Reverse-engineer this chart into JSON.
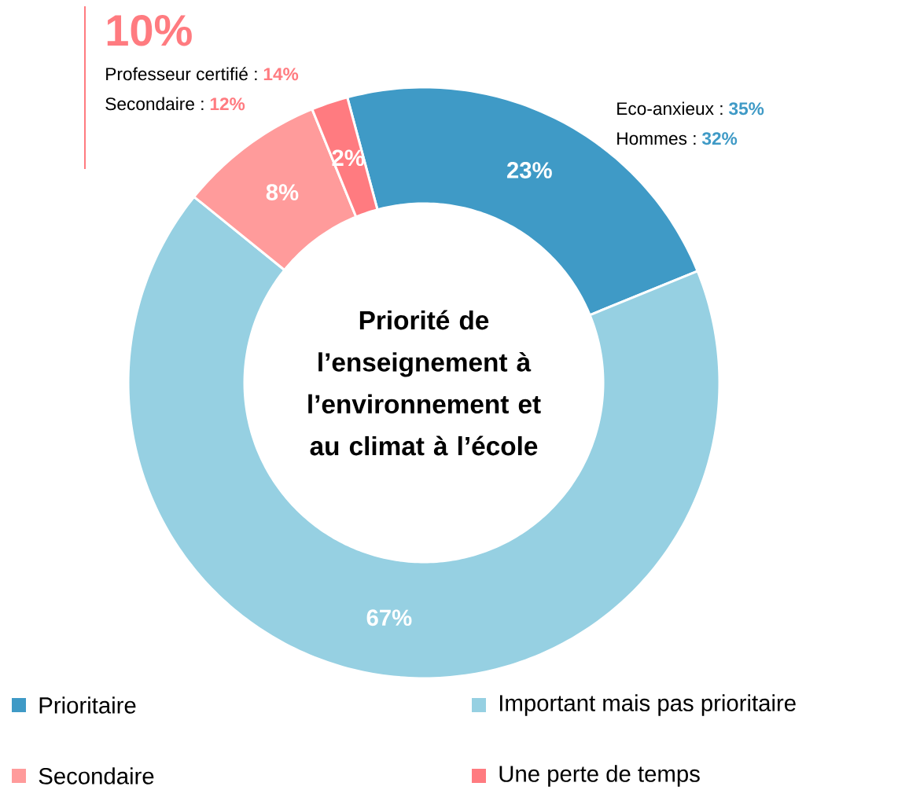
{
  "chart_data": {
    "type": "donut",
    "title": "Priorité de l’enseignement à l’environnement et au climat à l’école",
    "categories": [
      "Prioritaire",
      "Important mais pas prioritaire",
      "Secondaire",
      "Une perte de temps"
    ],
    "values": [
      23,
      67,
      8,
      2
    ],
    "value_labels": [
      "23%",
      "67%",
      "8%",
      "2%"
    ],
    "colors": [
      "#3f9ac6",
      "#96d0e2",
      "#ff9b9b",
      "#ff7b80"
    ],
    "legend": "bottom",
    "annotations": [
      "10%",
      "Professeur certifié :",
      "14%",
      "Secondaire :",
      "12%",
      "Eco-anxieux :",
      "35%",
      "Hommes :",
      "32%"
    ]
  }
}
